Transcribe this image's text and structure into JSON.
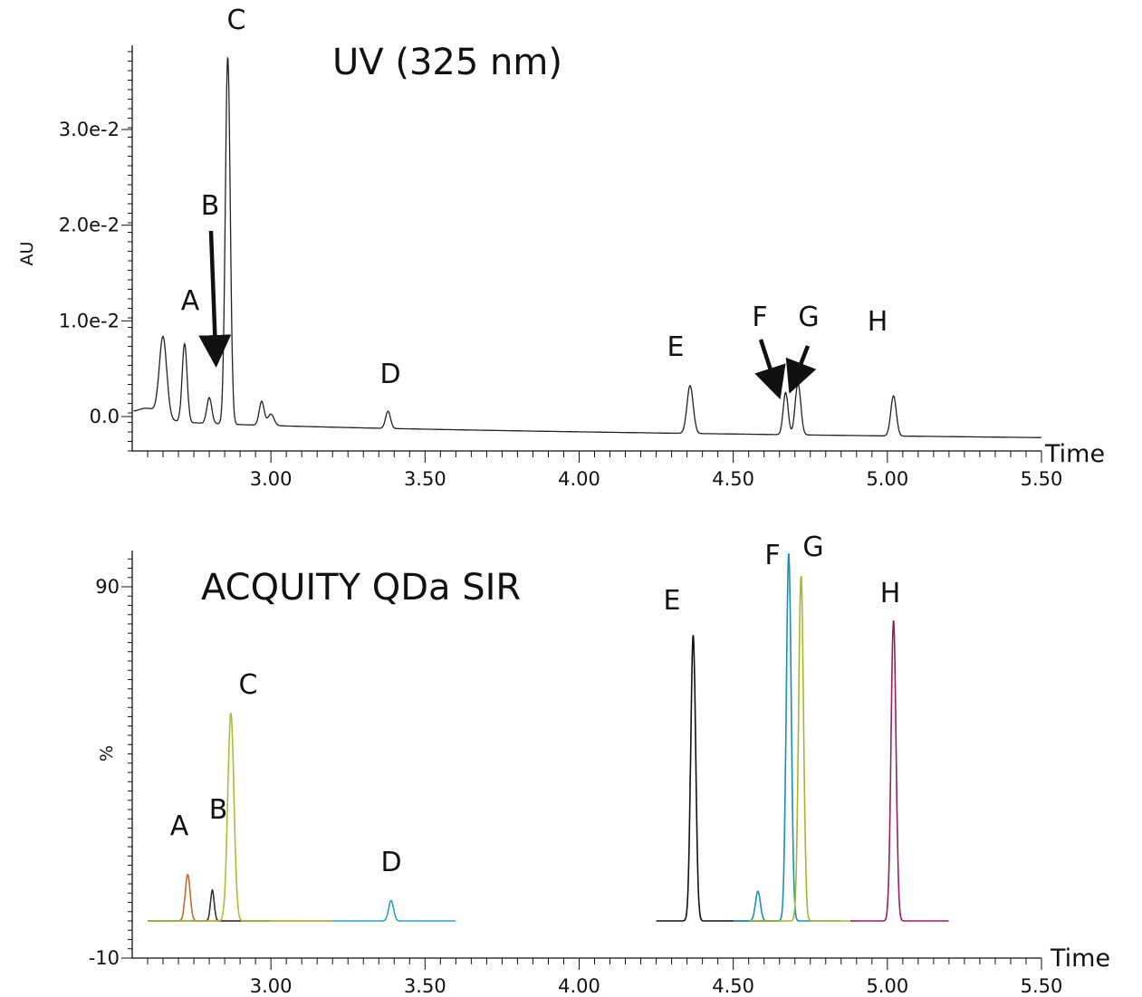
{
  "chart_data": [
    {
      "type": "line",
      "title": "UV (325 nm)",
      "xlabel": "Time",
      "ylabel": "AU",
      "xlim": [
        2.55,
        5.5
      ],
      "ylim": [
        -0.0013,
        0.0385
      ],
      "x_ticks": [
        "3.00",
        "3.50",
        "4.00",
        "4.50",
        "5.00",
        "5.50"
      ],
      "y_ticks": [
        "0.0",
        "1.0e-2",
        "2.0e-2",
        "3.0e-2"
      ],
      "y_tick_values": [
        0,
        0.01,
        0.02,
        0.03
      ],
      "baseline": {
        "start": 0.0,
        "end": -0.0022
      },
      "peaks": [
        {
          "label": "",
          "time": 2.65,
          "height": 0.0083,
          "width": 0.012
        },
        {
          "label": "A",
          "time": 2.72,
          "height": 0.0082,
          "width": 0.008
        },
        {
          "label": "B",
          "time": 2.8,
          "height": 0.0027,
          "width": 0.008
        },
        {
          "label": "C",
          "time": 2.86,
          "height": 0.0384,
          "width": 0.008
        },
        {
          "label": "",
          "time": 2.97,
          "height": 0.0025,
          "width": 0.008
        },
        {
          "label": "",
          "time": 3.0,
          "height": 0.0012,
          "width": 0.01
        },
        {
          "label": "D",
          "time": 3.38,
          "height": 0.0018,
          "width": 0.008
        },
        {
          "label": "E",
          "time": 4.36,
          "height": 0.005,
          "width": 0.01
        },
        {
          "label": "F",
          "time": 4.67,
          "height": 0.0044,
          "width": 0.008
        },
        {
          "label": "G",
          "time": 4.71,
          "height": 0.0054,
          "width": 0.009
        },
        {
          "label": "H",
          "time": 5.02,
          "height": 0.0042,
          "width": 0.009
        }
      ],
      "arrows": [
        "B",
        "F",
        "G"
      ]
    },
    {
      "type": "line",
      "title": "ACQUITY QDa SIR",
      "xlabel": "Time",
      "ylabel": "%",
      "xlim": [
        2.55,
        5.5
      ],
      "ylim": [
        -10,
        100
      ],
      "x_ticks": [
        "3.00",
        "3.50",
        "4.00",
        "4.50",
        "5.00",
        "5.50"
      ],
      "y_ticks": [
        "-10",
        "90"
      ],
      "y_tick_values": [
        -10,
        90
      ],
      "baseline_value": 0,
      "series": [
        {
          "label": "A",
          "color": "#c46a2e",
          "range": [
            2.6,
            3.2
          ],
          "peaks": [
            {
              "time": 2.73,
              "height": 12.5,
              "width": 0.008
            }
          ]
        },
        {
          "label": "B",
          "color": "#333333",
          "range": [
            2.6,
            3.0
          ],
          "peaks": [
            {
              "time": 2.81,
              "height": 8.3,
              "width": 0.006
            }
          ]
        },
        {
          "label": "C",
          "color": "#a8bf3a",
          "range": [
            2.6,
            3.2
          ],
          "peaks": [
            {
              "time": 2.87,
              "height": 56,
              "width": 0.01
            }
          ]
        },
        {
          "label": "D",
          "color": "#2a9fd0",
          "range": [
            3.2,
            3.6
          ],
          "peaks": [
            {
              "time": 3.39,
              "height": 5.5,
              "width": 0.008
            }
          ]
        },
        {
          "label": "E",
          "color": "#111111",
          "range": [
            4.25,
            4.65
          ],
          "peaks": [
            {
              "time": 4.37,
              "height": 77,
              "width": 0.008
            }
          ]
        },
        {
          "label": "F",
          "color": "#1b8fb8",
          "range": [
            4.5,
            4.85
          ],
          "peaks": [
            {
              "time": 4.68,
              "height": 99,
              "width": 0.008
            },
            {
              "time": 4.58,
              "height": 8,
              "width": 0.008
            }
          ]
        },
        {
          "label": "G",
          "color": "#a3b82c",
          "range": [
            4.55,
            4.9
          ],
          "peaks": [
            {
              "time": 4.72,
              "height": 93,
              "width": 0.008
            }
          ]
        },
        {
          "label": "H",
          "color": "#9a1f5e",
          "range": [
            4.88,
            5.2
          ],
          "peaks": [
            {
              "time": 5.02,
              "height": 81,
              "width": 0.008
            }
          ]
        }
      ]
    }
  ]
}
